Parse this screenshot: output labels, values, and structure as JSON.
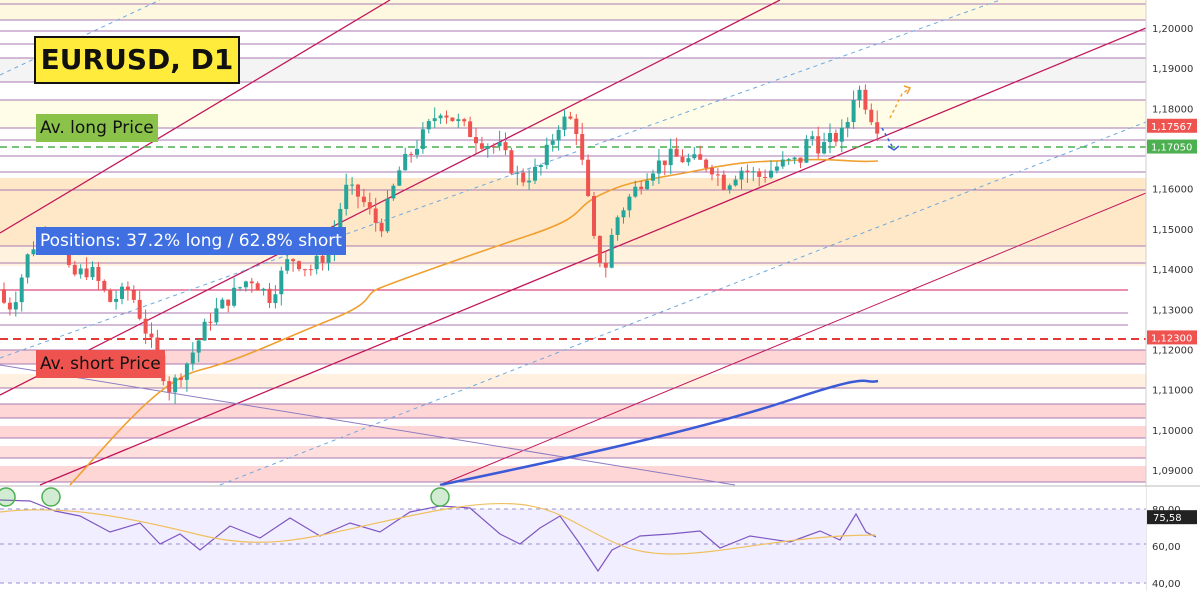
{
  "header": {
    "title": "EURUSD, D1"
  },
  "labels": {
    "av_long": "Av. long Price",
    "av_short": "Av. short Price",
    "positions": "Positions: 37.2% long / 62.8% short"
  },
  "colors": {
    "up_candle": "#26a69a",
    "down_candle": "#ef5350",
    "ma_line": "#f0a030",
    "long_line": "#4caf50",
    "short_line": "#e53935",
    "channel": "#c2185b",
    "rsi_line": "#7e57c2",
    "title_bg": "#ffeb3b"
  },
  "chart_data": {
    "type": "candlestick",
    "y_axis": {
      "min": 1.08,
      "max": 1.205,
      "ticks": [
        "1,09000",
        "1,10000",
        "1,11000",
        "1,12000",
        "1,13000",
        "1,14000",
        "1,15000",
        "1,16000",
        "1,17000",
        "1,18000",
        "1,19000",
        "1,20000"
      ],
      "tick_values": [
        1.09,
        1.1,
        1.11,
        1.12,
        1.13,
        1.14,
        1.15,
        1.16,
        1.17,
        1.18,
        1.19,
        1.2
      ]
    },
    "price_markers": [
      {
        "label": "1,17567",
        "value": 1.17567,
        "color": "#ef5350"
      },
      {
        "label": "1,17050",
        "value": 1.1705,
        "color": "#4caf50"
      },
      {
        "label": "1,12300",
        "value": 1.123,
        "color": "#ef5350"
      }
    ],
    "avg_long_price": 1.1705,
    "avg_short_price": 1.123,
    "rsi": {
      "ticks": [
        "40,00",
        "60,00",
        "80,00"
      ],
      "tick_values": [
        40,
        60,
        80
      ],
      "current_label": "75,58",
      "current": 75.58
    }
  }
}
